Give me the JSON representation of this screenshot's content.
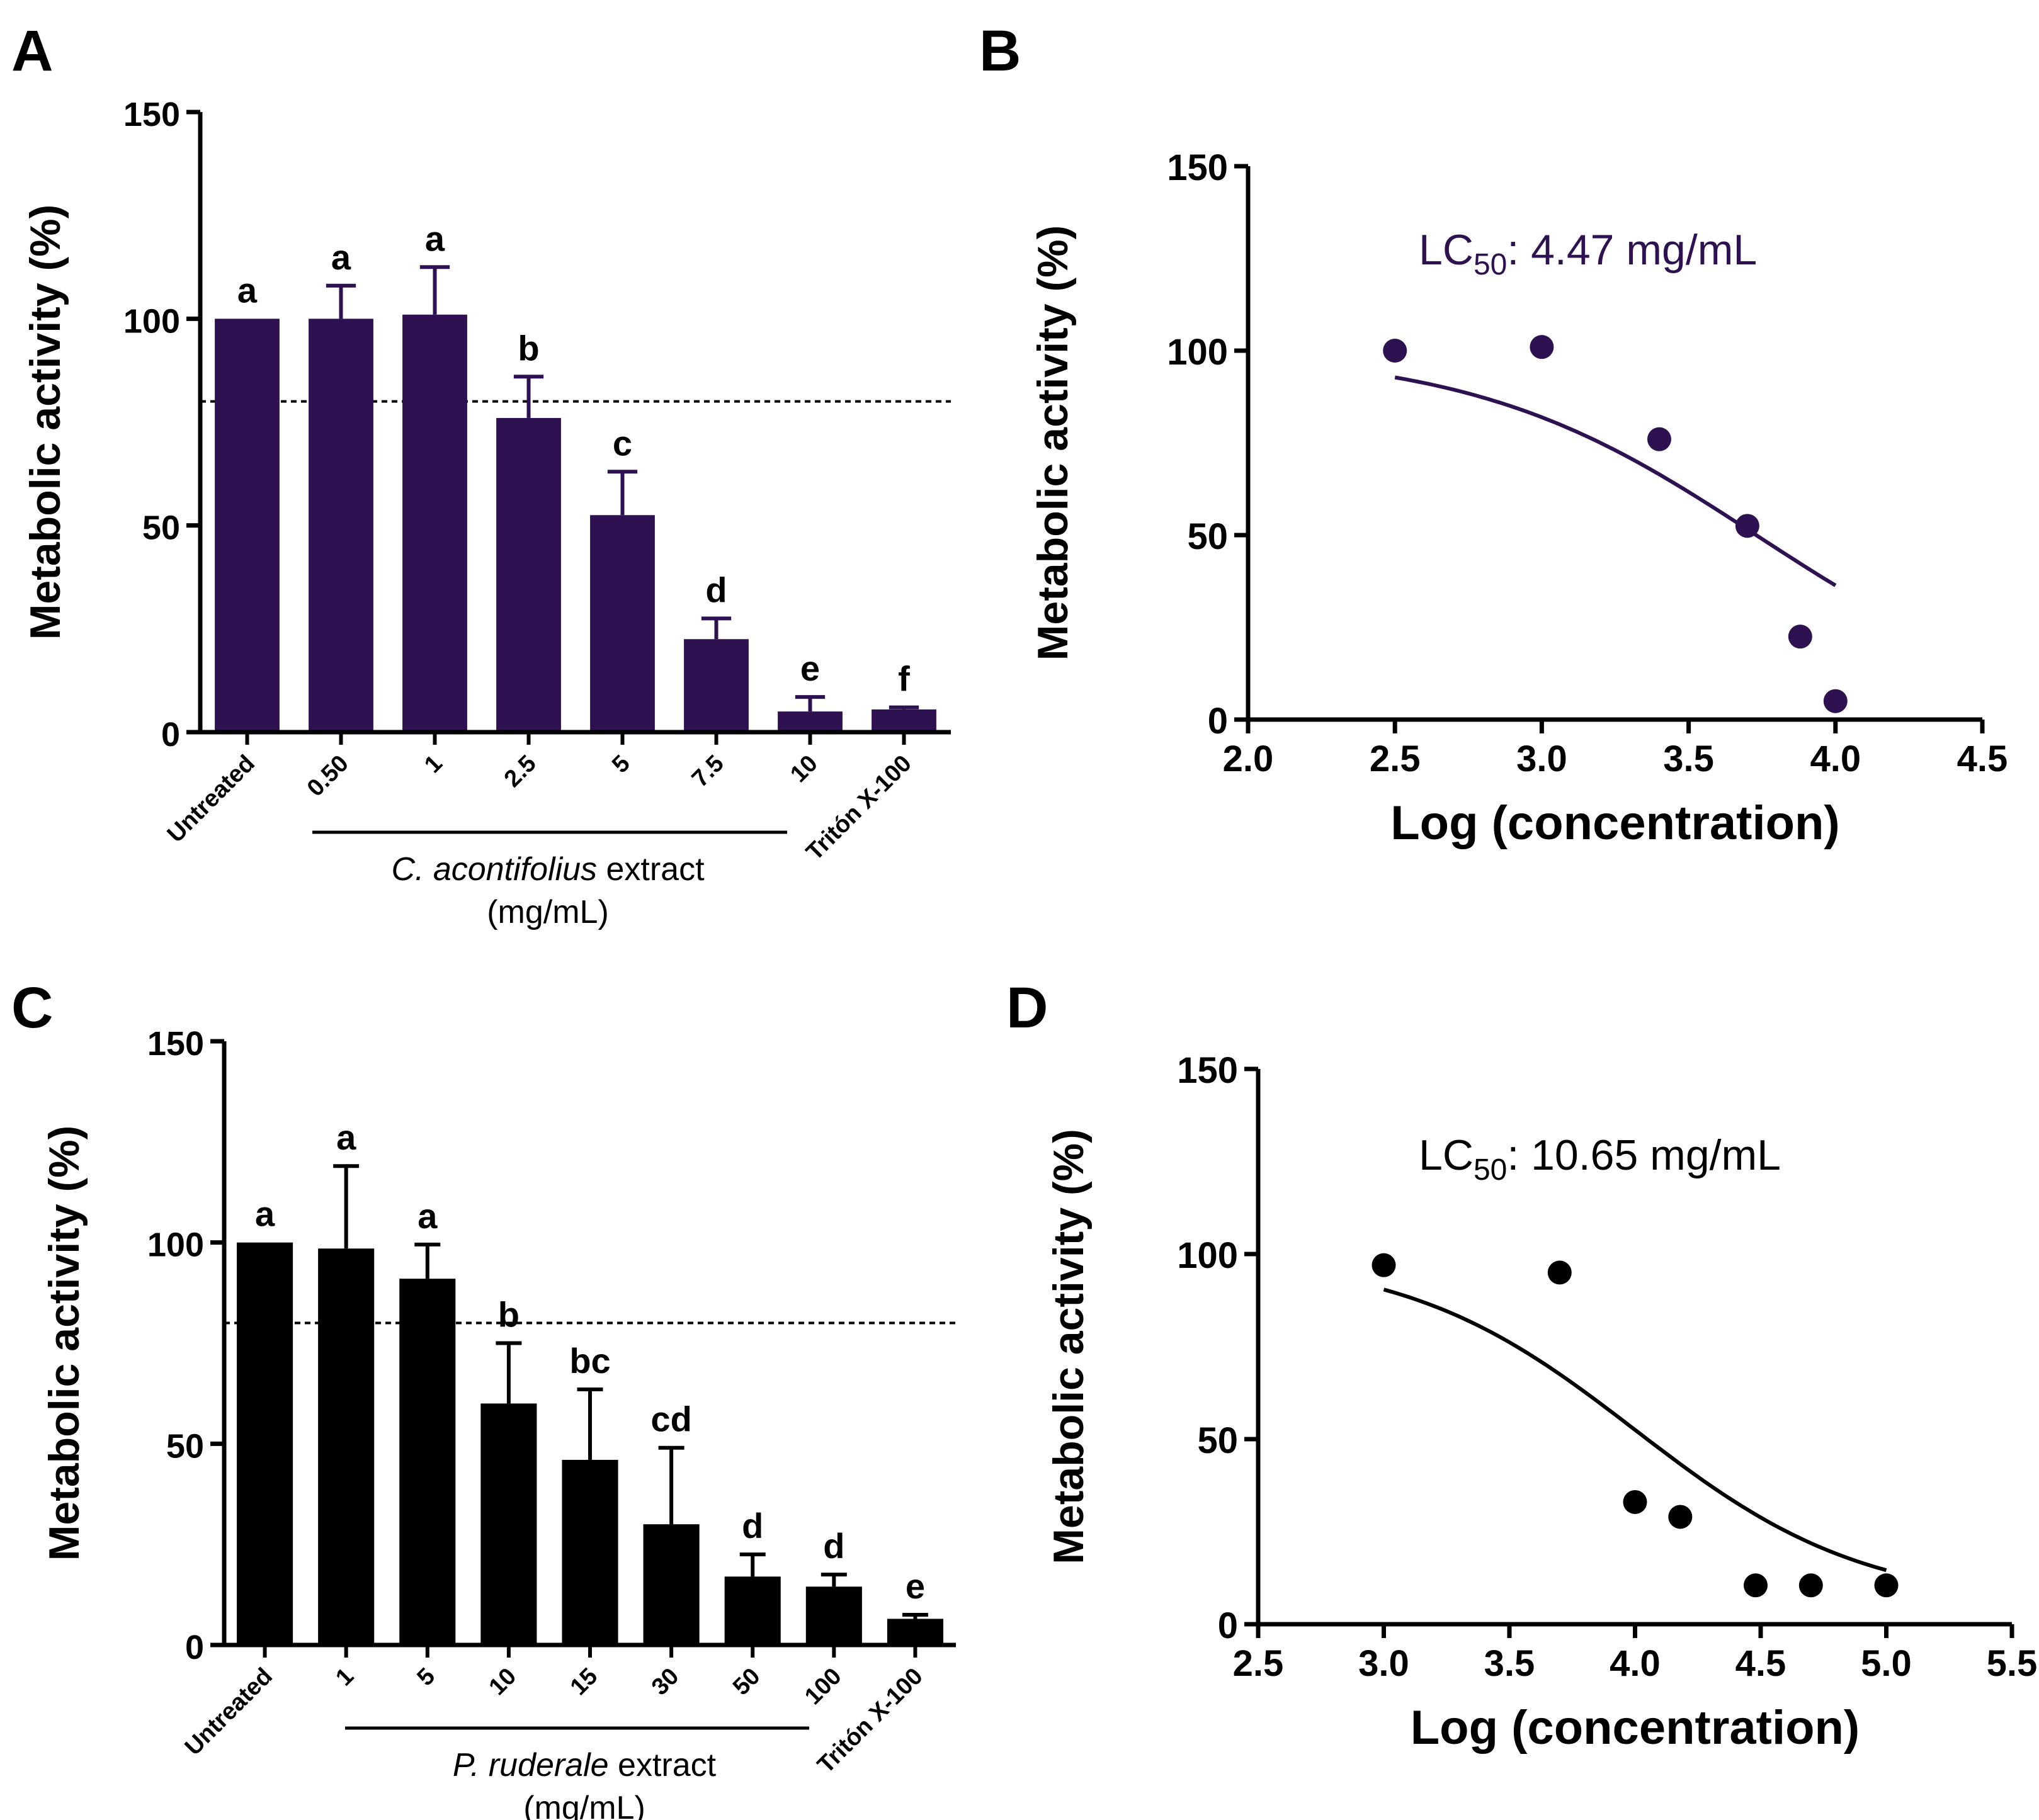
{
  "figure": {
    "panel_A_letter": "A",
    "panel_B_letter": "B",
    "panel_C_letter": "C",
    "panel_D_letter": "D"
  },
  "colors": {
    "purple": "#2d1150",
    "black": "#000000"
  },
  "chart_data": [
    {
      "panel": "A",
      "type": "bar",
      "ylabel": "Metabolic activity (%)",
      "ylim": [
        0,
        150
      ],
      "yticks": [
        0,
        50,
        100,
        150
      ],
      "color": "#2d1150",
      "categories": [
        "Untreated",
        "0.50",
        "1",
        "2.5",
        "5",
        "7.5",
        "10",
        "Tritón X-100"
      ],
      "values": [
        100,
        100,
        101,
        76,
        52.5,
        22.5,
        5,
        5.5
      ],
      "errors": [
        0,
        8,
        11.5,
        10,
        10.5,
        5,
        3.5,
        0.5
      ],
      "significance_letters": [
        "a",
        "a",
        "a",
        "b",
        "c",
        "d",
        "e",
        "f"
      ],
      "reference_line": 80,
      "group_label_italic": "C. acontifolius",
      "group_label_rest": " extract",
      "group_label_units": "(mg/mL)"
    },
    {
      "panel": "B",
      "type": "scatter",
      "xlabel": "Log (concentration)",
      "ylabel": "Metabolic activity (%)",
      "xlim": [
        2.0,
        4.5
      ],
      "ylim": [
        0,
        150
      ],
      "xticks": [
        "2.0",
        "2.5",
        "3.0",
        "3.5",
        "4.0",
        "4.5"
      ],
      "yticks": [
        0,
        50,
        100,
        150
      ],
      "color": "#2d1150",
      "points_x": [
        2.5,
        3.0,
        3.4,
        3.7,
        3.88,
        4.0
      ],
      "points_y": [
        100,
        101,
        76,
        52.5,
        22.5,
        5
      ],
      "fit_curve": {
        "top": 100,
        "bottom": 0,
        "log_ec50": 3.73,
        "hill_slope": -0.9,
        "x_range": [
          2.5,
          4.0
        ]
      },
      "lc50_prefix": "LC",
      "lc50_subscript": "50",
      "lc50_value": ": 4.47 mg/mL"
    },
    {
      "panel": "C",
      "type": "bar",
      "ylabel": "Metabolic activity (%)",
      "ylim": [
        0,
        150
      ],
      "yticks": [
        0,
        50,
        100,
        150
      ],
      "color": "#000000",
      "categories": [
        "Untreated",
        "1",
        "5",
        "10",
        "15",
        "30",
        "50",
        "100",
        "Tritón X-100"
      ],
      "values": [
        100,
        98.5,
        91,
        60,
        46,
        30,
        17,
        14.5,
        6.5
      ],
      "errors": [
        0,
        20.5,
        8.5,
        15,
        17.5,
        19,
        5.5,
        3,
        1
      ],
      "significance_letters": [
        "a",
        "a",
        "a",
        "b",
        "bc",
        "cd",
        "d",
        "d",
        "e"
      ],
      "reference_line": 80,
      "group_label_italic": "P. ruderale",
      "group_label_rest": " extract",
      "group_label_units": "(mg/mL)"
    },
    {
      "panel": "D",
      "type": "scatter",
      "xlabel": "Log (concentration)",
      "ylabel": "Metabolic activity (%)",
      "xlim": [
        2.5,
        5.5
      ],
      "ylim": [
        0,
        150
      ],
      "xticks": [
        "2.5",
        "3.0",
        "3.5",
        "4.0",
        "4.5",
        "5.0",
        "5.5"
      ],
      "yticks": [
        0,
        50,
        100,
        150
      ],
      "color": "#000000",
      "points_x": [
        3.0,
        3.7,
        4.0,
        4.18,
        4.48,
        4.7,
        5.0
      ],
      "points_y": [
        97,
        95,
        33,
        29,
        10.5,
        10.5,
        10.5
      ],
      "fit_curve": {
        "top": 100,
        "bottom": 5,
        "log_ec50": 4.0,
        "hill_slope": -0.95,
        "x_range": [
          3.0,
          5.0
        ]
      },
      "lc50_prefix": "LC",
      "lc50_subscript": "50",
      "lc50_value": ": 10.65 mg/mL"
    }
  ]
}
